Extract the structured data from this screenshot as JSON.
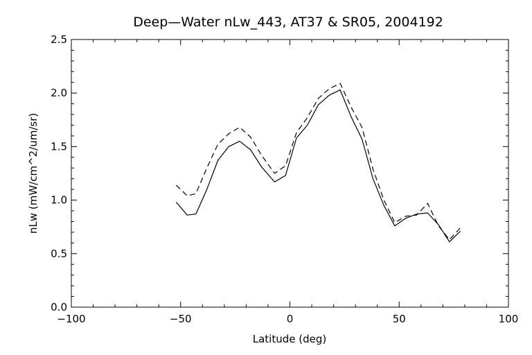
{
  "chart_data": {
    "type": "line",
    "title": "Deep—Water nLw_443, AT37 & SR05, 2004192",
    "xlabel": "Latitude (deg)",
    "ylabel": "nLw (mW/cm^2/um/sr)",
    "xlim": [
      -100,
      100
    ],
    "ylim": [
      0.0,
      2.5
    ],
    "grid": false,
    "x_ticks": [
      "−100",
      "−50",
      "0",
      "50",
      "100"
    ],
    "y_ticks": [
      "0.0",
      "0.5",
      "1.0",
      "1.5",
      "2.0",
      "2.5"
    ],
    "series": [
      {
        "style": "solid",
        "color": "#000000",
        "points": [
          [
            -52,
            0.98
          ],
          [
            -47,
            0.86
          ],
          [
            -43,
            0.87
          ],
          [
            -38,
            1.1
          ],
          [
            -33,
            1.37
          ],
          [
            -28,
            1.5
          ],
          [
            -23,
            1.55
          ],
          [
            -18,
            1.47
          ],
          [
            -13,
            1.31
          ],
          [
            -7,
            1.17
          ],
          [
            -2,
            1.23
          ],
          [
            3,
            1.58
          ],
          [
            8,
            1.7
          ],
          [
            13,
            1.89
          ],
          [
            18,
            1.98
          ],
          [
            23,
            2.03
          ],
          [
            28,
            1.78
          ],
          [
            33,
            1.57
          ],
          [
            38,
            1.2
          ],
          [
            43,
            0.95
          ],
          [
            48,
            0.76
          ],
          [
            53,
            0.83
          ],
          [
            58,
            0.87
          ],
          [
            63,
            0.88
          ],
          [
            68,
            0.77
          ],
          [
            73,
            0.61
          ],
          [
            78,
            0.71
          ]
        ]
      },
      {
        "style": "dashed",
        "color": "#000000",
        "points": [
          [
            -52,
            1.14
          ],
          [
            -47,
            1.04
          ],
          [
            -43,
            1.06
          ],
          [
            -38,
            1.3
          ],
          [
            -33,
            1.52
          ],
          [
            -28,
            1.62
          ],
          [
            -23,
            1.68
          ],
          [
            -18,
            1.59
          ],
          [
            -13,
            1.42
          ],
          [
            -7,
            1.25
          ],
          [
            -2,
            1.32
          ],
          [
            3,
            1.63
          ],
          [
            8,
            1.77
          ],
          [
            13,
            1.95
          ],
          [
            18,
            2.04
          ],
          [
            23,
            2.09
          ],
          [
            28,
            1.87
          ],
          [
            33,
            1.68
          ],
          [
            38,
            1.29
          ],
          [
            43,
            1.0
          ],
          [
            48,
            0.79
          ],
          [
            53,
            0.85
          ],
          [
            58,
            0.86
          ],
          [
            63,
            0.97
          ],
          [
            68,
            0.76
          ],
          [
            73,
            0.63
          ],
          [
            78,
            0.74
          ]
        ]
      }
    ]
  }
}
